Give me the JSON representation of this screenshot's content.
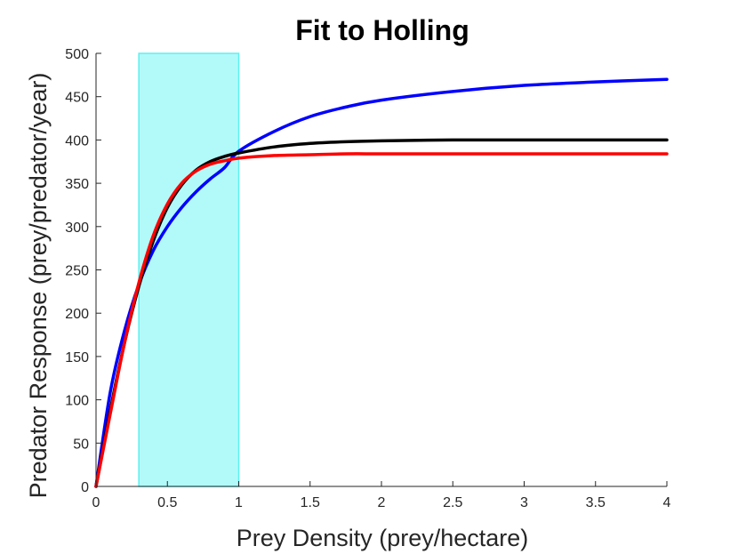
{
  "chart_data": {
    "type": "line",
    "title": "Fit to Holling",
    "xlabel": "Prey Density (prey/hectare)",
    "ylabel": "Predator Response (prey/predator/year)",
    "xlim": [
      0,
      4
    ],
    "ylim": [
      0,
      500
    ],
    "xticks": [
      "0",
      "0.5",
      "1",
      "1.5",
      "2",
      "2.5",
      "3",
      "3.5",
      "4"
    ],
    "xtick_values": [
      0,
      0.5,
      1,
      1.5,
      2,
      2.5,
      3,
      3.5,
      4
    ],
    "yticks": [
      "0",
      "50",
      "100",
      "150",
      "200",
      "250",
      "300",
      "350",
      "400",
      "450",
      "500"
    ],
    "ytick_values": [
      0,
      50,
      100,
      150,
      200,
      250,
      300,
      350,
      400,
      450,
      500
    ],
    "grid": false,
    "shaded_region": {
      "x": [
        0.3,
        1.0
      ],
      "color": "#b2fafa",
      "edge_color": "#5ef0f0"
    },
    "x": [
      0,
      0.1,
      0.2,
      0.3,
      0.4,
      0.5,
      0.6,
      0.7,
      0.8,
      0.9,
      1.0,
      1.25,
      1.5,
      1.75,
      2.0,
      2.5,
      3.0,
      3.5,
      4.0
    ],
    "series": [
      {
        "color": "#0000ff",
        "values": [
          0,
          109,
          180,
          233,
          272,
          300,
          322,
          340,
          355,
          368,
          387,
          410,
          427,
          438,
          446,
          456,
          463,
          467,
          470
        ]
      },
      {
        "color": "#000000",
        "values": [
          0,
          88,
          166,
          231,
          283,
          322,
          348,
          365,
          375,
          381,
          385,
          392,
          396,
          398,
          399,
          400,
          400,
          400,
          400
        ]
      },
      {
        "color": "#ff0000",
        "values": [
          0,
          84,
          166,
          235,
          289,
          326,
          350,
          364,
          372,
          376,
          379,
          382,
          383,
          384,
          384,
          384,
          384,
          384,
          384
        ]
      }
    ]
  }
}
